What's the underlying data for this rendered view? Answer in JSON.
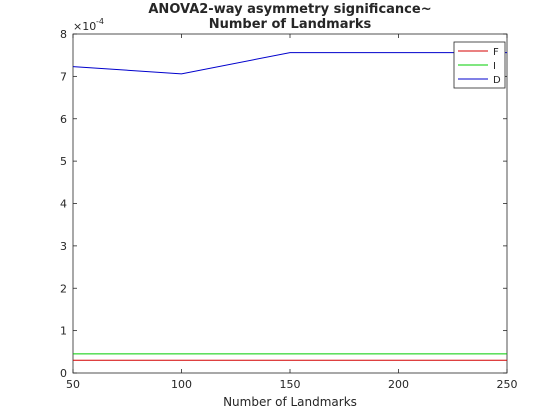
{
  "chart_data": {
    "type": "line",
    "title_line1": "ANOVA2-way asymmetry significance~",
    "title_line2": "Number of Landmarks",
    "xlabel": "Number of Landmarks",
    "ylabel": "",
    "y_exponent_label": "×10",
    "y_exponent_power": "-4",
    "xlim": [
      50,
      250
    ],
    "ylim": [
      0,
      8
    ],
    "xticks": [
      50,
      100,
      150,
      200,
      250
    ],
    "yticks": [
      0,
      1,
      2,
      3,
      4,
      5,
      6,
      7,
      8
    ],
    "x": [
      50,
      100,
      150,
      200,
      250
    ],
    "series": [
      {
        "name": "F",
        "color": "#d40000",
        "values": [
          0.3,
          0.3,
          0.3,
          0.3,
          0.3
        ]
      },
      {
        "name": "I",
        "color": "#00cc00",
        "values": [
          0.45,
          0.45,
          0.45,
          0.45,
          0.45
        ]
      },
      {
        "name": "D",
        "color": "#0000cc",
        "values": [
          7.23,
          7.06,
          7.56,
          7.56,
          7.56
        ]
      }
    ],
    "legend_position": "top-right",
    "grid": false
  }
}
